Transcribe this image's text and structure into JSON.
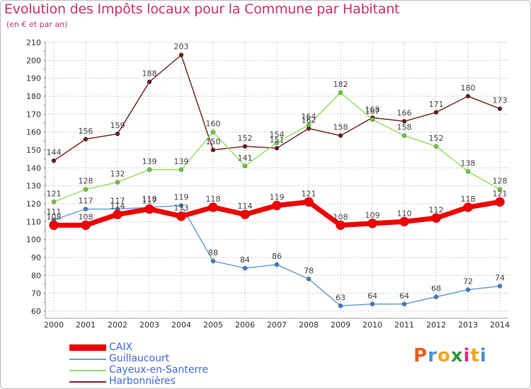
{
  "header": {
    "title": "Evolution des Impôts locaux pour la Commune par Habitant",
    "subtitle": "(en € et par an)"
  },
  "logo": {
    "text": "Proxiti",
    "colors": [
      "#e85c1a",
      "#4a8fd4",
      "#f0a81c",
      "#2c9a3c",
      "#d63384",
      "#f0a81c",
      "#4a8fd4"
    ]
  },
  "colors": {
    "title": "#cc3366",
    "axis_text": "#333333",
    "grid": "#cfcfcf",
    "legend_text": "#4169e1"
  },
  "chart_data": {
    "type": "line",
    "title": "Evolution des Impôts locaux pour la Commune par Habitant",
    "subtitle": "(en € et par an)",
    "x": [
      "2000",
      "2001",
      "2002",
      "2003",
      "2004",
      "2005",
      "2006",
      "2007",
      "2008",
      "2009",
      "2010",
      "2011",
      "2012",
      "2013",
      "2014"
    ],
    "ylim": [
      60,
      210
    ],
    "yticks": [
      60,
      70,
      80,
      90,
      100,
      110,
      120,
      130,
      140,
      150,
      160,
      170,
      180,
      190,
      200,
      210
    ],
    "grid": true,
    "legend_position": "bottom-left",
    "series": [
      {
        "name": "CAIX",
        "color": "#ee0000",
        "marker_color": "#ee0000",
        "emphasis": true,
        "values": [
          108,
          108,
          114,
          117,
          113,
          118,
          114,
          119,
          121,
          108,
          109,
          110,
          112,
          118,
          121
        ],
        "labels": [
          "108",
          "108",
          "114",
          "117",
          "113",
          "118",
          "114",
          "119",
          "121",
          "108",
          "109",
          "110",
          "112",
          "118",
          "121"
        ]
      },
      {
        "name": "Guillaucourt",
        "color": "#6b9fd0",
        "marker_color": "#3b7fc4",
        "emphasis": false,
        "values": [
          111,
          117,
          117,
          118,
          119,
          88,
          84,
          86,
          78,
          63,
          64,
          64,
          68,
          72,
          74
        ],
        "labels": [
          "111",
          "117",
          "117",
          "118",
          "119",
          "88",
          "84",
          "86",
          "78",
          "63",
          "64",
          "64",
          "68",
          "72",
          "74"
        ]
      },
      {
        "name": "Cayeux-en-Santerre",
        "color": "#99dd66",
        "marker_color": "#66cc33",
        "emphasis": false,
        "values": [
          121,
          128,
          132,
          139,
          139,
          160,
          141,
          154,
          164,
          182,
          167,
          158,
          152,
          138,
          128
        ],
        "labels": [
          "121",
          "128",
          "132",
          "139",
          "139",
          "160",
          "141",
          "154",
          "164",
          "182",
          "167",
          "158",
          "152",
          "138",
          "128"
        ]
      },
      {
        "name": "Harbonnières",
        "color": "#7a2a2a",
        "marker_color": "#661a1a",
        "emphasis": false,
        "values": [
          144,
          156,
          159,
          188,
          203,
          150,
          152,
          151,
          162,
          158,
          168,
          166,
          171,
          180,
          173
        ],
        "labels": [
          "144",
          "156",
          "159",
          "188",
          "203",
          "150",
          "152",
          "151",
          "162",
          "158",
          "168",
          "166",
          "171",
          "180",
          "173"
        ]
      }
    ]
  }
}
